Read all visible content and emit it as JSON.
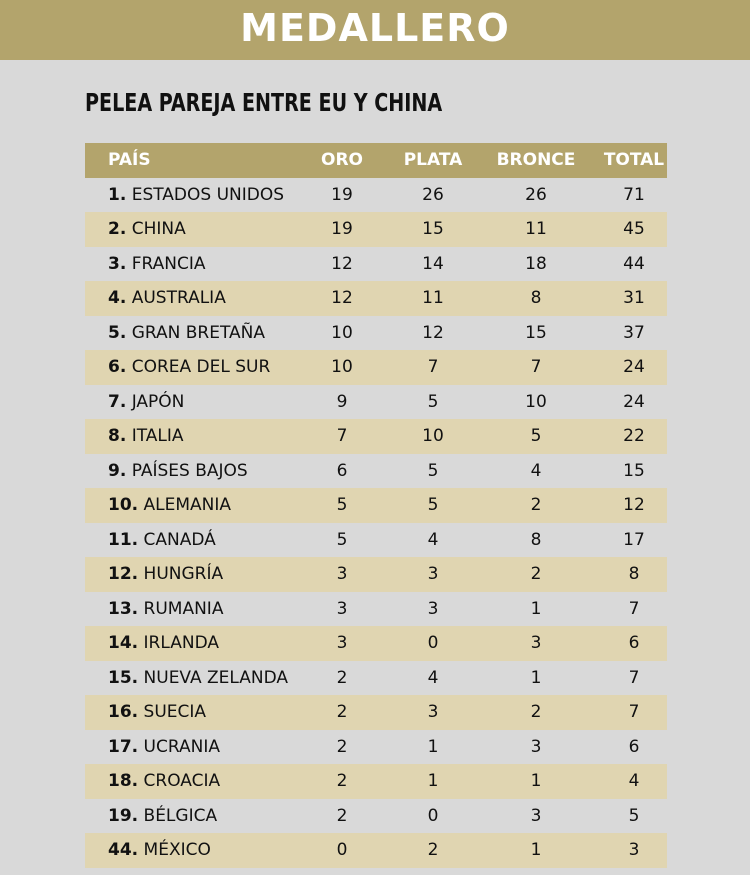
{
  "header": {
    "title": "MEDALLERO",
    "subtitle": "PELEA PAREJA ENTRE EU Y CHINA"
  },
  "table": {
    "columns": [
      "PAÍS",
      "ORO",
      "PLATA",
      "BRONCE",
      "TOTAL"
    ],
    "rows": [
      [
        "1.",
        "ESTADOS UNIDOS",
        19,
        26,
        26,
        71
      ],
      [
        "2.",
        "CHINA",
        19,
        15,
        11,
        45
      ],
      [
        "3.",
        "FRANCIA",
        12,
        14,
        18,
        44
      ],
      [
        "4.",
        "AUSTRALIA",
        12,
        11,
        8,
        31
      ],
      [
        "5.",
        "GRAN BRETAÑA",
        10,
        12,
        15,
        37
      ],
      [
        "6.",
        "COREA DEL SUR",
        10,
        7,
        7,
        24
      ],
      [
        "7.",
        "JAPÓN",
        9,
        5,
        10,
        24
      ],
      [
        "8.",
        "ITALIA",
        7,
        10,
        5,
        22
      ],
      [
        "9.",
        "PAÍSES BAJOS",
        6,
        5,
        4,
        15
      ],
      [
        "10.",
        "ALEMANIA",
        5,
        5,
        2,
        12
      ],
      [
        "11.",
        "CANADÁ",
        5,
        4,
        8,
        17
      ],
      [
        "12.",
        "HUNGRÍA",
        3,
        3,
        2,
        8
      ],
      [
        "13.",
        "RUMANIA",
        3,
        3,
        1,
        7
      ],
      [
        "14.",
        "IRLANDA",
        3,
        0,
        3,
        6
      ],
      [
        "15.",
        "NUEVA ZELANDA",
        2,
        4,
        1,
        7
      ],
      [
        "16.",
        "SUECIA",
        2,
        3,
        2,
        7
      ],
      [
        "17.",
        "UCRANIA",
        2,
        1,
        3,
        6
      ],
      [
        "18.",
        "CROACIA",
        2,
        1,
        1,
        4
      ],
      [
        "19.",
        "BÉLGICA",
        2,
        0,
        3,
        5
      ],
      [
        "44.",
        "MÉXICO",
        0,
        2,
        1,
        3
      ]
    ]
  }
}
